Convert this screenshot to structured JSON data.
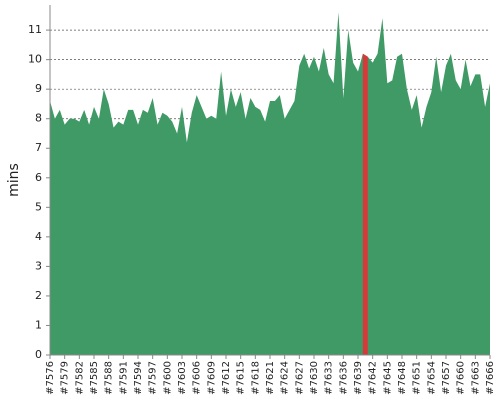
{
  "chart_data": {
    "type": "area",
    "y_label": "mins",
    "categories": [
      "#7576",
      null,
      null,
      "#7579",
      null,
      null,
      "#7582",
      null,
      null,
      "#7585",
      null,
      null,
      "#7588",
      null,
      null,
      "#7591",
      null,
      null,
      "#7594",
      null,
      null,
      "#7597",
      null,
      null,
      "#7600",
      null,
      null,
      "#7603",
      null,
      null,
      "#7606",
      null,
      null,
      "#7609",
      null,
      null,
      "#7612",
      null,
      null,
      "#7615",
      null,
      null,
      "#7618",
      null,
      null,
      "#7621",
      null,
      null,
      "#7624",
      null,
      null,
      "#7627",
      null,
      null,
      "#7630",
      null,
      null,
      "#7633",
      null,
      null,
      "#7636",
      null,
      null,
      "#7639",
      null,
      null,
      "#7642",
      null,
      null,
      "#7645",
      null,
      null,
      "#7648",
      null,
      null,
      "#7651",
      null,
      null,
      "#7654",
      null,
      null,
      "#7657",
      null,
      null,
      "#7660",
      null,
      null,
      "#7663",
      null,
      null,
      "#7666"
    ],
    "values": [
      8.6,
      8.0,
      8.3,
      7.8,
      8.0,
      8.0,
      7.9,
      8.3,
      7.8,
      8.4,
      8.0,
      9.0,
      8.5,
      7.7,
      7.9,
      7.8,
      8.3,
      8.3,
      7.8,
      8.3,
      8.2,
      8.7,
      7.8,
      8.2,
      8.1,
      7.9,
      7.5,
      8.4,
      7.2,
      8.2,
      8.8,
      8.4,
      8.0,
      8.1,
      8.0,
      9.6,
      8.1,
      9.0,
      8.4,
      8.9,
      8.0,
      8.7,
      8.4,
      8.3,
      7.9,
      8.6,
      8.6,
      8.8,
      8.0,
      8.3,
      8.6,
      9.8,
      10.2,
      9.7,
      10.1,
      9.6,
      10.4,
      9.5,
      9.2,
      11.6,
      8.7,
      11.0,
      9.9,
      9.6,
      10.2,
      10.1,
      9.9,
      10.2,
      11.4,
      9.2,
      9.3,
      10.1,
      10.2,
      9.0,
      8.3,
      8.8,
      7.7,
      8.4,
      8.9,
      10.1,
      8.9,
      9.8,
      10.2,
      9.3,
      9.0,
      10.0,
      9.1,
      9.5,
      9.5,
      8.4,
      9.2
    ],
    "color": "#3f9a66",
    "highlight_range": [
      64,
      65
    ],
    "highlight_color": "#d8383a",
    "ylim": [
      0,
      11.85
    ],
    "yticks": [
      0,
      1,
      2,
      3,
      4,
      5,
      6,
      7,
      8,
      9,
      10,
      11
    ],
    "grid": true
  }
}
